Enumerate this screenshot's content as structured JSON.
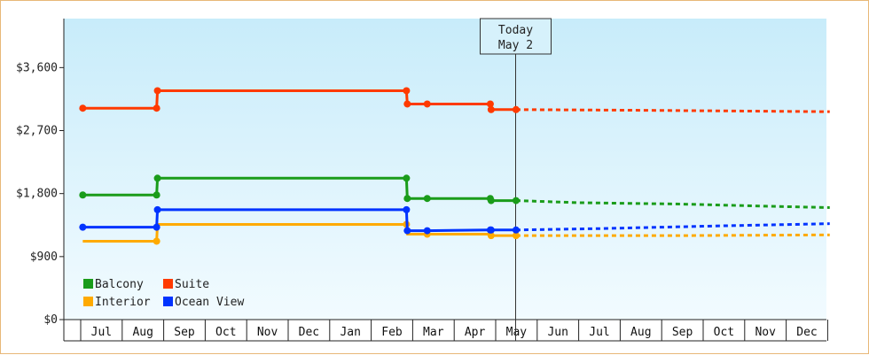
{
  "chart_data": {
    "type": "line",
    "title": "",
    "xlabel": "",
    "ylabel": "",
    "ylim": [
      0,
      4300
    ],
    "y_ticks": [
      0,
      900,
      1800,
      2700,
      3600
    ],
    "y_tick_labels": [
      "$0",
      "$900",
      "$1,800",
      "$2,700",
      "$3,600"
    ],
    "x_categories": [
      "Jul",
      "Aug",
      "Sep",
      "Oct",
      "Nov",
      "Dec",
      "Jan",
      "Feb",
      "Mar",
      "Apr",
      "May",
      "Jun",
      "Jul",
      "Aug",
      "Sep",
      "Oct",
      "Nov",
      "Dec"
    ],
    "today_marker": {
      "line1": "Today",
      "line2": "May 2",
      "month_index": 9.99
    },
    "legend": {
      "placement": "bottom-left"
    },
    "grid": false,
    "series": [
      {
        "name": "Balcony",
        "color": "#1a9c1a",
        "points": [
          {
            "m": -0.45,
            "v": 1780,
            "marker": true
          },
          {
            "m": 1.33,
            "v": 1780,
            "marker": true
          },
          {
            "m": 1.35,
            "v": 2020,
            "marker": true
          },
          {
            "m": 7.35,
            "v": 2020,
            "marker": true
          },
          {
            "m": 7.37,
            "v": 1730,
            "marker": true
          },
          {
            "m": 7.85,
            "v": 1730,
            "marker": true
          },
          {
            "m": 9.37,
            "v": 1730,
            "marker": true
          },
          {
            "m": 9.39,
            "v": 1700,
            "marker": true
          },
          {
            "m": 9.99,
            "v": 1700,
            "marker": true
          }
        ],
        "forecast": [
          {
            "m": 9.99,
            "v": 1700
          },
          {
            "m": 11.5,
            "v": 1670
          },
          {
            "m": 14,
            "v": 1650
          },
          {
            "m": 16,
            "v": 1620
          },
          {
            "m": 17.55,
            "v": 1600
          }
        ]
      },
      {
        "name": "Suite",
        "color": "#ff3a00",
        "points": [
          {
            "m": -0.45,
            "v": 3020,
            "marker": true
          },
          {
            "m": 1.33,
            "v": 3020,
            "marker": true
          },
          {
            "m": 1.35,
            "v": 3270,
            "marker": true
          },
          {
            "m": 7.35,
            "v": 3270,
            "marker": true
          },
          {
            "m": 7.37,
            "v": 3080,
            "marker": true
          },
          {
            "m": 7.85,
            "v": 3080,
            "marker": true
          },
          {
            "m": 9.37,
            "v": 3080,
            "marker": true
          },
          {
            "m": 9.39,
            "v": 3000,
            "marker": true
          },
          {
            "m": 9.99,
            "v": 3000,
            "marker": true
          }
        ],
        "forecast": [
          {
            "m": 9.99,
            "v": 3000
          },
          {
            "m": 13,
            "v": 2990
          },
          {
            "m": 17.55,
            "v": 2970
          }
        ]
      },
      {
        "name": "Interior",
        "color": "#ffaa00",
        "points": [
          {
            "m": -0.45,
            "v": 1120,
            "marker": false
          },
          {
            "m": 1.33,
            "v": 1120,
            "marker": true
          },
          {
            "m": 1.35,
            "v": 1360,
            "marker": false
          },
          {
            "m": 7.35,
            "v": 1360,
            "marker": true
          },
          {
            "m": 7.37,
            "v": 1220,
            "marker": false
          },
          {
            "m": 7.85,
            "v": 1220,
            "marker": true
          },
          {
            "m": 9.37,
            "v": 1220,
            "marker": false
          },
          {
            "m": 9.39,
            "v": 1200,
            "marker": true
          },
          {
            "m": 9.99,
            "v": 1200,
            "marker": true
          }
        ],
        "forecast": [
          {
            "m": 9.99,
            "v": 1200
          },
          {
            "m": 14,
            "v": 1200
          },
          {
            "m": 17.55,
            "v": 1210
          }
        ]
      },
      {
        "name": "Ocean View",
        "color": "#0033ff",
        "points": [
          {
            "m": -0.45,
            "v": 1320,
            "marker": true
          },
          {
            "m": 1.33,
            "v": 1320,
            "marker": true
          },
          {
            "m": 1.35,
            "v": 1570,
            "marker": true
          },
          {
            "m": 7.35,
            "v": 1570,
            "marker": true
          },
          {
            "m": 7.37,
            "v": 1270,
            "marker": true
          },
          {
            "m": 7.85,
            "v": 1270,
            "marker": true
          },
          {
            "m": 9.37,
            "v": 1280,
            "marker": true
          },
          {
            "m": 9.39,
            "v": 1280,
            "marker": true
          },
          {
            "m": 9.99,
            "v": 1280,
            "marker": true
          }
        ],
        "forecast": [
          {
            "m": 9.99,
            "v": 1280
          },
          {
            "m": 12,
            "v": 1300
          },
          {
            "m": 15,
            "v": 1340
          },
          {
            "m": 17.55,
            "v": 1370
          }
        ]
      }
    ]
  }
}
